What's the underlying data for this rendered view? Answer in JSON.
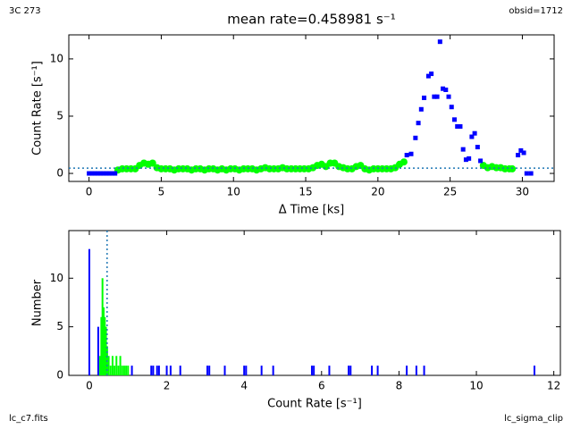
{
  "page_labels": {
    "top_left": "3C 273",
    "top_right": "obsid=1712",
    "bottom_left": "lc_c7.fits",
    "bottom_right": "lc_sigma_clip"
  },
  "chart_data": [
    {
      "type": "scatter",
      "title": "mean rate=0.458981 s⁻¹",
      "x_label": "Δ Time [ks]",
      "y_label": "Count Rate [s⁻¹]",
      "xlim": [
        -1.4,
        32.2
      ],
      "ylim": [
        -0.7,
        12.1
      ],
      "xticks": [
        0,
        5,
        10,
        15,
        20,
        25,
        30
      ],
      "yticks": [
        0,
        5,
        10
      ],
      "hline": 0.458981,
      "line_color": "#1f77b4",
      "series": [
        {
          "name": "good",
          "color": "#00ff00",
          "marker": "circle",
          "x": [
            2.0,
            2.3,
            2.6,
            2.9,
            3.2,
            3.5,
            3.8,
            4.1,
            4.4,
            4.7,
            5.0,
            5.3,
            5.6,
            5.9,
            6.2,
            6.5,
            6.8,
            7.1,
            7.4,
            7.7,
            8.0,
            8.3,
            8.6,
            8.9,
            9.2,
            9.5,
            9.8,
            10.1,
            10.4,
            10.7,
            11.0,
            11.3,
            11.6,
            11.9,
            12.2,
            12.5,
            12.8,
            13.1,
            13.4,
            13.7,
            14.0,
            14.3,
            14.6,
            14.9,
            15.2,
            15.5,
            15.8,
            16.1,
            16.4,
            16.7,
            17.0,
            17.3,
            17.6,
            17.9,
            18.2,
            18.5,
            18.8,
            19.1,
            19.4,
            19.7,
            20.0,
            20.3,
            20.6,
            20.9,
            21.2,
            21.5,
            21.8,
            27.3,
            27.6,
            27.9,
            28.2,
            28.5,
            28.8,
            29.1,
            29.3
          ],
          "values": [
            0.3,
            0.4,
            0.4,
            0.4,
            0.4,
            0.7,
            0.9,
            0.8,
            0.9,
            0.5,
            0.4,
            0.4,
            0.4,
            0.3,
            0.4,
            0.4,
            0.4,
            0.3,
            0.4,
            0.4,
            0.3,
            0.4,
            0.4,
            0.3,
            0.4,
            0.3,
            0.4,
            0.4,
            0.3,
            0.4,
            0.4,
            0.4,
            0.3,
            0.4,
            0.5,
            0.4,
            0.4,
            0.4,
            0.5,
            0.4,
            0.4,
            0.4,
            0.4,
            0.4,
            0.4,
            0.5,
            0.7,
            0.8,
            0.6,
            0.9,
            0.9,
            0.6,
            0.5,
            0.4,
            0.4,
            0.6,
            0.7,
            0.4,
            0.3,
            0.4,
            0.4,
            0.4,
            0.4,
            0.4,
            0.5,
            0.8,
            1.0,
            0.7,
            0.5,
            0.6,
            0.5,
            0.5,
            0.4,
            0.4,
            0.4
          ]
        },
        {
          "name": "clipped",
          "color": "#0000ff",
          "marker": "square",
          "x": [
            0,
            0.2,
            0.4,
            0.6,
            0.8,
            1.0,
            1.2,
            1.4,
            1.6,
            1.8,
            22.0,
            22.3,
            22.6,
            22.8,
            23.0,
            23.2,
            23.5,
            23.7,
            23.9,
            24.1,
            24.3,
            24.5,
            24.7,
            24.9,
            25.1,
            25.3,
            25.5,
            25.7,
            25.9,
            26.1,
            26.3,
            26.5,
            26.7,
            26.9,
            27.1,
            29.7,
            29.9,
            30.1,
            30.3,
            30.6
          ],
          "values": [
            0,
            0,
            0,
            0,
            0,
            0,
            0,
            0,
            0,
            0,
            1.6,
            1.7,
            3.1,
            4.4,
            5.6,
            6.6,
            8.5,
            8.7,
            6.7,
            6.7,
            11.5,
            7.4,
            7.3,
            6.7,
            5.8,
            4.7,
            4.1,
            4.1,
            2.1,
            1.2,
            1.3,
            3.2,
            3.5,
            2.3,
            1.1,
            1.6,
            2.0,
            1.8,
            0,
            0
          ]
        }
      ]
    },
    {
      "type": "histogram",
      "x_label": "Count Rate [s⁻¹]",
      "y_label": "Number",
      "xlim": [
        -0.53,
        12.17
      ],
      "ylim": [
        0,
        14.9
      ],
      "xticks": [
        0,
        2,
        4,
        6,
        8,
        10,
        12
      ],
      "yticks": [
        0,
        5,
        10
      ],
      "vline": 0.458981,
      "line_color": "#1f77b4",
      "series": [
        {
          "name": "clipped",
          "color": "#0000ff",
          "x": [
            0,
            0.23,
            1.1,
            1.6,
            1.65,
            1.75,
            1.8,
            2.0,
            2.1,
            2.35,
            3.05,
            3.1,
            3.5,
            4.0,
            4.05,
            4.45,
            4.75,
            5.75,
            5.8,
            6.2,
            6.7,
            6.75,
            7.3,
            7.45,
            8.2,
            8.45,
            8.65,
            11.5
          ],
          "values": [
            13,
            5,
            1,
            1,
            1,
            1,
            1,
            1,
            1,
            1,
            1,
            1,
            1,
            1,
            1,
            1,
            1,
            1,
            1,
            1,
            1,
            1,
            1,
            1,
            1,
            1,
            1,
            1
          ]
        },
        {
          "name": "good",
          "color": "#00ff00",
          "x": [
            0.28,
            0.31,
            0.34,
            0.37,
            0.4,
            0.43,
            0.46,
            0.5,
            0.55,
            0.6,
            0.65,
            0.7,
            0.75,
            0.8,
            0.85,
            0.9,
            0.95,
            1.0
          ],
          "values": [
            2,
            6,
            10,
            7,
            6,
            5,
            3,
            2,
            1,
            2,
            1,
            2,
            1,
            2,
            1,
            1,
            1,
            1
          ]
        }
      ]
    }
  ]
}
